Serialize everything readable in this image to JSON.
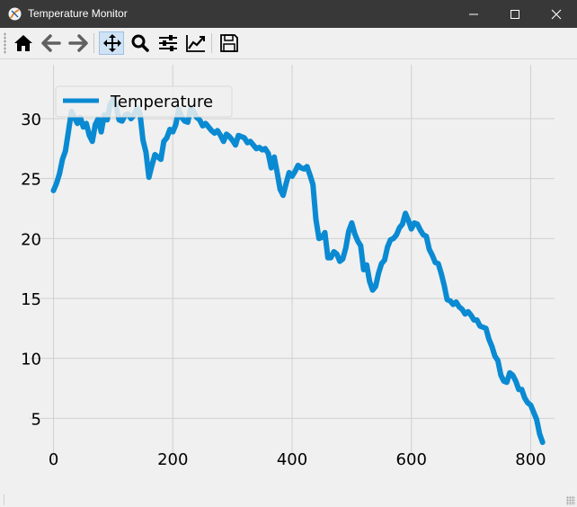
{
  "window": {
    "title": "Temperature Monitor",
    "controls": [
      "minimize-icon",
      "maximize-icon",
      "close-icon"
    ]
  },
  "toolbar": {
    "tools": [
      {
        "name": "home",
        "icon": "home-icon"
      },
      {
        "name": "back",
        "icon": "arrow-left-icon"
      },
      {
        "name": "forward",
        "icon": "arrow-right-icon"
      },
      {
        "name": "pan",
        "icon": "move-icon",
        "active": true
      },
      {
        "name": "zoom",
        "icon": "magnifier-icon"
      },
      {
        "name": "configure-subplots",
        "icon": "sliders-icon"
      },
      {
        "name": "edit-axis",
        "icon": "line-chart-icon"
      },
      {
        "name": "save",
        "icon": "floppy-disk-icon"
      }
    ]
  },
  "colors": {
    "titlebar": "#383838",
    "plot_background": "#f0f0f0",
    "grid": "#d0d0d0",
    "series": "#0a8ad2"
  },
  "chart_data": {
    "type": "line",
    "title": "",
    "xlabel": "",
    "ylabel": "",
    "xlim": [
      -40,
      840
    ],
    "ylim": [
      1.5,
      34.5
    ],
    "xticks": [
      0,
      200,
      400,
      600,
      800
    ],
    "yticks": [
      5,
      10,
      15,
      20,
      25,
      30
    ],
    "xtick_labels": [
      "0",
      "200",
      "400",
      "600",
      "800"
    ],
    "ytick_labels": [
      "5",
      "10",
      "15",
      "20",
      "25",
      "30"
    ],
    "grid": true,
    "legend": {
      "placement": "upper left",
      "entries": [
        "Temperature"
      ]
    },
    "series": [
      {
        "name": "Temperature",
        "color": "#0a8ad2",
        "x": [
          0,
          5,
          10,
          15,
          20,
          25,
          30,
          35,
          40,
          45,
          50,
          55,
          60,
          65,
          70,
          75,
          80,
          85,
          90,
          95,
          100,
          105,
          110,
          115,
          120,
          125,
          130,
          135,
          140,
          145,
          150,
          155,
          160,
          165,
          170,
          175,
          180,
          185,
          190,
          195,
          200,
          205,
          210,
          215,
          220,
          225,
          230,
          235,
          240,
          245,
          250,
          255,
          260,
          265,
          270,
          275,
          280,
          285,
          290,
          295,
          300,
          305,
          310,
          315,
          320,
          325,
          330,
          335,
          340,
          345,
          350,
          355,
          360,
          365,
          370,
          375,
          380,
          385,
          390,
          395,
          400,
          405,
          410,
          415,
          420,
          425,
          430,
          435,
          440,
          445,
          450,
          455,
          460,
          465,
          470,
          475,
          480,
          485,
          490,
          495,
          500,
          505,
          510,
          515,
          520,
          525,
          530,
          535,
          540,
          545,
          550,
          555,
          560,
          565,
          570,
          575,
          580,
          585,
          590,
          595,
          600,
          605,
          610,
          615,
          620,
          625,
          630,
          635,
          640,
          645,
          650,
          655,
          660,
          665,
          670,
          675,
          680,
          685,
          690,
          695,
          700,
          705,
          710,
          715,
          720,
          725,
          730,
          735,
          740,
          745,
          750,
          755,
          760,
          765,
          770,
          775,
          780,
          785,
          790,
          795,
          800,
          805,
          810,
          815,
          820
        ],
        "y": [
          24.0,
          24.6,
          25.4,
          26.6,
          27.3,
          28.9,
          30.6,
          30.1,
          29.6,
          30.1,
          29.3,
          29.6,
          28.6,
          28.1,
          29.5,
          30.0,
          28.9,
          30.3,
          29.9,
          31.2,
          31.6,
          31.0,
          29.9,
          29.8,
          30.3,
          30.4,
          30.0,
          30.3,
          30.9,
          30.4,
          28.2,
          27.2,
          25.1,
          26.1,
          27.0,
          26.8,
          26.6,
          28.1,
          28.4,
          29.1,
          28.9,
          29.5,
          30.8,
          30.1,
          29.8,
          29.7,
          30.9,
          30.6,
          30.1,
          29.9,
          29.4,
          29.6,
          29.3,
          29.0,
          28.8,
          29.0,
          28.6,
          28.1,
          28.7,
          28.5,
          28.2,
          27.8,
          28.6,
          28.5,
          28.4,
          28.0,
          28.1,
          27.8,
          27.5,
          27.6,
          27.4,
          27.5,
          27.1,
          25.9,
          26.8,
          25.5,
          24.1,
          23.6,
          24.6,
          25.5,
          25.2,
          25.6,
          26.1,
          25.9,
          25.8,
          26.0,
          25.3,
          24.5,
          21.6,
          20.0,
          20.1,
          20.5,
          18.4,
          18.4,
          18.9,
          18.7,
          18.1,
          18.3,
          19.2,
          20.6,
          21.3,
          20.4,
          19.8,
          19.4,
          17.4,
          17.8,
          16.4,
          15.7,
          16.0,
          17.1,
          17.9,
          18.2,
          19.3,
          19.9,
          20.0,
          20.3,
          20.9,
          21.2,
          22.1,
          21.5,
          20.8,
          21.3,
          21.2,
          20.7,
          20.3,
          20.2,
          19.1,
          18.6,
          18.0,
          17.9,
          17.1,
          16.1,
          14.9,
          14.8,
          14.5,
          14.7,
          14.3,
          14.1,
          13.7,
          13.9,
          13.6,
          13.2,
          13.2,
          12.7,
          12.6,
          12.5,
          11.6,
          11.0,
          10.2,
          9.8,
          8.6,
          8.1,
          8.0,
          8.8,
          8.6,
          8.1,
          7.4,
          7.4,
          6.7,
          6.3,
          6.1,
          5.5,
          4.9,
          3.7,
          3.0
        ]
      }
    ]
  }
}
